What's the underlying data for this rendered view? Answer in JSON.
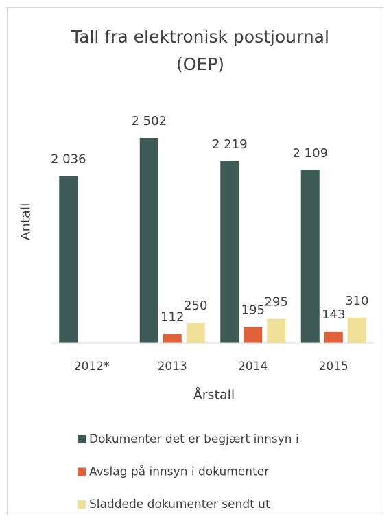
{
  "chart_data": {
    "type": "bar",
    "title": [
      "Tall fra elektronisk postjournal",
      "(OEP)"
    ],
    "y_label": "Antall",
    "x_label": "Årstall",
    "categories": [
      "2012*",
      "2013",
      "2014",
      "2015"
    ],
    "series": [
      {
        "name": "Dokumenter det er begjært innsyn i",
        "color": "#3e5a55",
        "values": [
          2036,
          2502,
          2219,
          2109
        ],
        "value_labels": [
          "2 036",
          "2 502",
          "2 219",
          "2 109"
        ]
      },
      {
        "name": "Avslag på innsyn i dokumenter",
        "color": "#e0603a",
        "values": [
          null,
          112,
          195,
          143
        ],
        "value_labels": [
          null,
          "112",
          "195",
          "143"
        ]
      },
      {
        "name": "Sladdede dokumenter sendt ut",
        "color": "#f0df96",
        "values": [
          null,
          250,
          295,
          310
        ],
        "value_labels": [
          null,
          "250",
          "295",
          "310"
        ]
      }
    ],
    "ylim": [
      0,
      3000
    ],
    "legend": "bottom"
  }
}
